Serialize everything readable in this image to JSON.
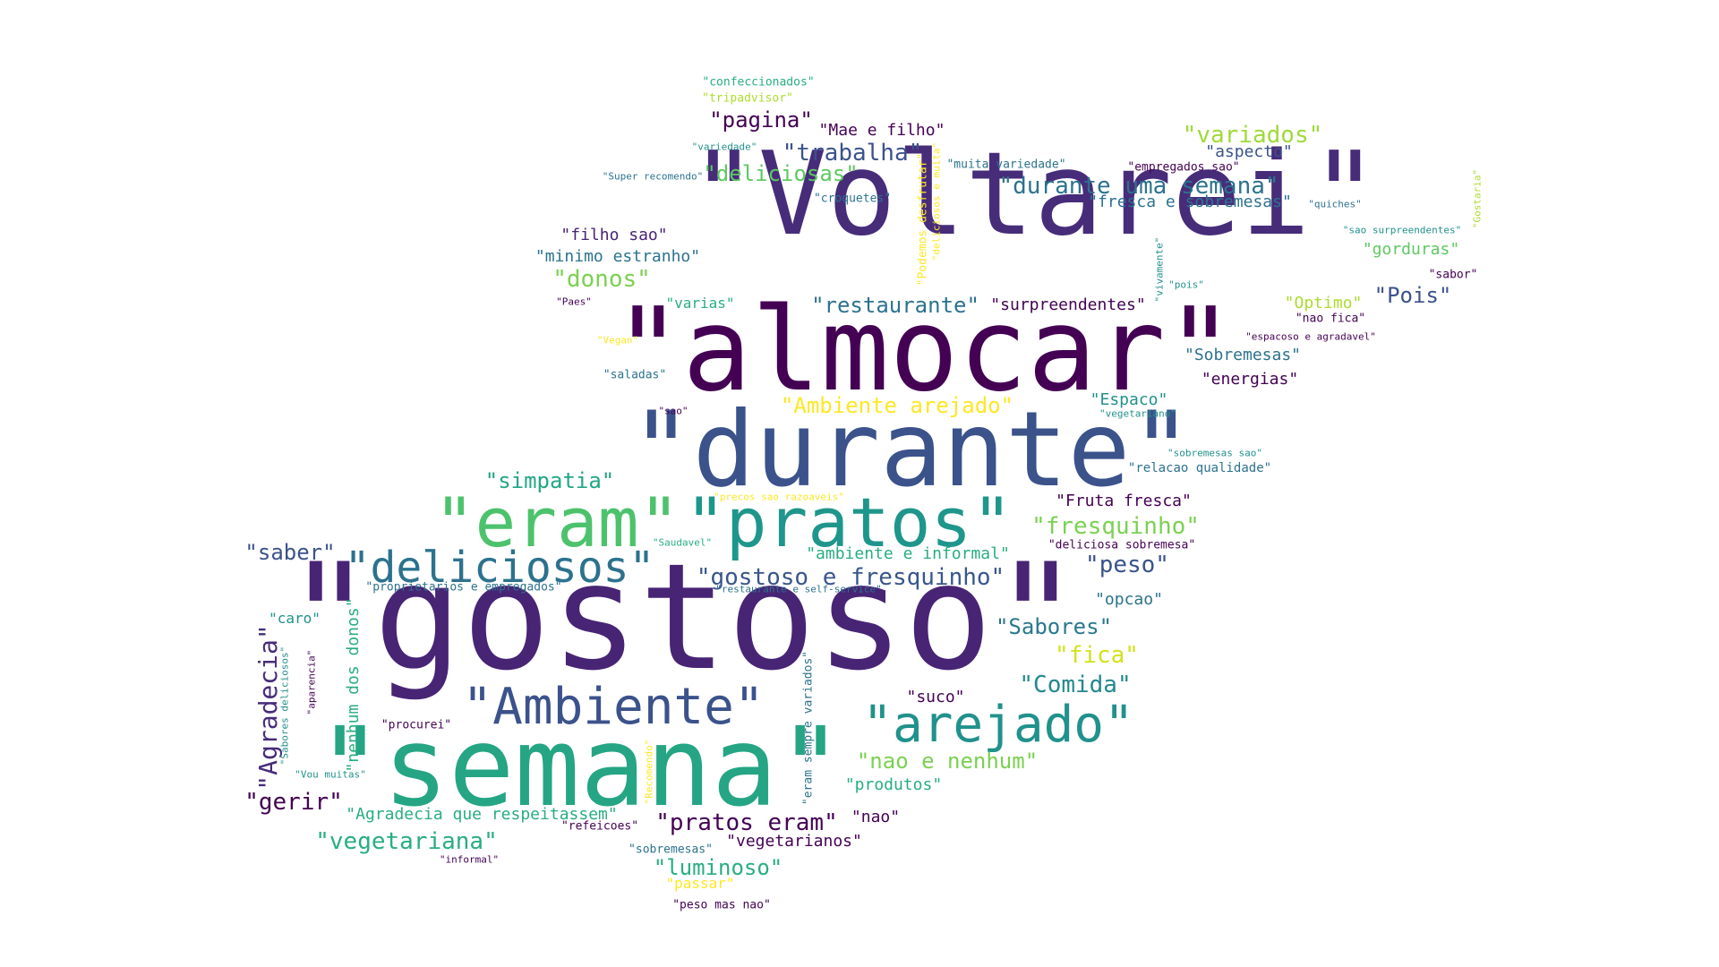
{
  "wordcloud": {
    "palette": {
      "dark_purple": "#440154",
      "indigo": "#472c7a",
      "slate_blue": "#3b528b",
      "steel_blue": "#2c728e",
      "teal": "#21918c",
      "green_teal": "#28ae80",
      "green": "#5ec962",
      "lime": "#addc30",
      "yellow": "#fde725"
    },
    "words": [
      {
        "text": "\"Voltarei\"",
        "color": "#472c7a"
      },
      {
        "text": "\"almocar\"",
        "color": "#440154"
      },
      {
        "text": "\"durante\"",
        "color": "#3b528b"
      },
      {
        "text": "\"gostoso\"",
        "color": "#482475"
      },
      {
        "text": "\"semana\"",
        "color": "#25a584"
      },
      {
        "text": "\"eram\"",
        "color": "#4cc26c"
      },
      {
        "text": "\"pratos\"",
        "color": "#1f968b"
      },
      {
        "text": "\"deliciosos\"",
        "color": "#2c728e"
      },
      {
        "text": "\"Ambiente\"",
        "color": "#3b528b"
      },
      {
        "text": "\"arejado\"",
        "color": "#21918c"
      },
      {
        "text": "\"gostoso e fresquinho\"",
        "color": "#39568c"
      },
      {
        "text": "\"durante uma semana\"",
        "color": "#2c728e"
      },
      {
        "text": "\"fresquinho\"",
        "color": "#7ad151"
      },
      {
        "text": "\"Agradecia\"",
        "color": "#472c7a"
      },
      {
        "text": "\"simpatia\"",
        "color": "#21a685"
      },
      {
        "text": "\"saber\"",
        "color": "#3b528b"
      },
      {
        "text": "\"pagina\"",
        "color": "#440154"
      },
      {
        "text": "\"trabalha\"",
        "color": "#3b528b"
      },
      {
        "text": "\"deliciosas\"",
        "color": "#5ec962"
      },
      {
        "text": "\"variados\"",
        "color": "#a0da39"
      },
      {
        "text": "\"donos\"",
        "color": "#7ad151"
      },
      {
        "text": "\"restaurante\"",
        "color": "#2c728e"
      },
      {
        "text": "\"Pois\"",
        "color": "#3b528b"
      },
      {
        "text": "\"Sabores\"",
        "color": "#2a788e"
      },
      {
        "text": "\"fica\"",
        "color": "#d2e21b"
      },
      {
        "text": "\"Comida\"",
        "color": "#23888e"
      },
      {
        "text": "\"nao e nenhum\"",
        "color": "#7ad151"
      },
      {
        "text": "\"peso\"",
        "color": "#3b528b"
      },
      {
        "text": "\"pratos eram\"",
        "color": "#440154"
      },
      {
        "text": "\"vegetariana\"",
        "color": "#28ae80"
      },
      {
        "text": "\"luminoso\"",
        "color": "#28ae80"
      },
      {
        "text": "\"gerir\"",
        "color": "#440154"
      },
      {
        "text": "\"Ambiente arejado\"",
        "color": "#fde725"
      },
      {
        "text": "\"Mae e filho\"",
        "color": "#440154"
      },
      {
        "text": "\"aspecto\"",
        "color": "#3b528b"
      },
      {
        "text": "\"fresca e sobremesas\"",
        "color": "#2c728e"
      },
      {
        "text": "\"filho sao\"",
        "color": "#482475"
      },
      {
        "text": "\"minimo estranho\"",
        "color": "#2c728e"
      },
      {
        "text": "\"surpreendentes\"",
        "color": "#440154"
      },
      {
        "text": "\"Optimo\"",
        "color": "#addc30"
      },
      {
        "text": "\"gorduras\"",
        "color": "#5ec962"
      },
      {
        "text": "\"Sobremesas\"",
        "color": "#2c728e"
      },
      {
        "text": "\"energias\"",
        "color": "#440154"
      },
      {
        "text": "\"Espaco\"",
        "color": "#21918c"
      },
      {
        "text": "\"relacao qualidade\"",
        "color": "#2c728e"
      },
      {
        "text": "\"Fruta fresca\"",
        "color": "#440154"
      },
      {
        "text": "\"ambiente e informal\"",
        "color": "#28ae80"
      },
      {
        "text": "\"opcao\"",
        "color": "#2c728e"
      },
      {
        "text": "\"suco\"",
        "color": "#440154"
      },
      {
        "text": "\"produtos\"",
        "color": "#28ae80"
      },
      {
        "text": "\"nao\"",
        "color": "#440154"
      },
      {
        "text": "\"vegetarianos\"",
        "color": "#440154"
      },
      {
        "text": "\"Agradecia que respeitassem\"",
        "color": "#28ae80"
      },
      {
        "text": "\"nenhum dos donos\"",
        "color": "#28ae80"
      },
      {
        "text": "\"caro\"",
        "color": "#21918c"
      },
      {
        "text": "\"passar\"",
        "color": "#fde725"
      },
      {
        "text": "\"varias\"",
        "color": "#28ae80"
      },
      {
        "text": "\"confeccionados\"",
        "color": "#28ae80"
      },
      {
        "text": "\"tripadvisor\"",
        "color": "#addc30"
      },
      {
        "text": "\"variedade\"",
        "color": "#21918c"
      },
      {
        "text": "\"Super recomendo\"",
        "color": "#2c728e"
      },
      {
        "text": "\"croquetes\"",
        "color": "#2c728e"
      },
      {
        "text": "\"muita variedade\"",
        "color": "#2c728e"
      },
      {
        "text": "\"empregados sao\"",
        "color": "#440154"
      },
      {
        "text": "\"quiches\"",
        "color": "#2c728e"
      },
      {
        "text": "\"sao surpreendentes\"",
        "color": "#21918c"
      },
      {
        "text": "\"sabor\"",
        "color": "#440154"
      },
      {
        "text": "\"Paes\"",
        "color": "#440154"
      },
      {
        "text": "\"Vegan\"",
        "color": "#fde725"
      },
      {
        "text": "\"pois\"",
        "color": "#21918c"
      },
      {
        "text": "\"nao fica\"",
        "color": "#440154"
      },
      {
        "text": "\"espacoso e agradavel\"",
        "color": "#440154"
      },
      {
        "text": "\"saladas\"",
        "color": "#2c728e"
      },
      {
        "text": "\"sao\"",
        "color": "#440154"
      },
      {
        "text": "\"vegetariano\"",
        "color": "#21918c"
      },
      {
        "text": "\"sobremesas sao\"",
        "color": "#21918c"
      },
      {
        "text": "\"precos sao razoaveis\"",
        "color": "#fde725"
      },
      {
        "text": "\"Saudavel\"",
        "color": "#28ae80"
      },
      {
        "text": "\"deliciosa sobremesa\"",
        "color": "#440154"
      },
      {
        "text": "\"proprietarios e empregados\"",
        "color": "#2c728e"
      },
      {
        "text": "\"restaurante e self-service\"",
        "color": "#2c728e"
      },
      {
        "text": "\"procurei\"",
        "color": "#440154"
      },
      {
        "text": "\"Vou muitas\"",
        "color": "#21918c"
      },
      {
        "text": "\"refeicoes\"",
        "color": "#440154"
      },
      {
        "text": "\"sobremesas\"",
        "color": "#2c728e"
      },
      {
        "text": "\"informal\"",
        "color": "#440154"
      },
      {
        "text": "\"peso mas nao\"",
        "color": "#440154"
      },
      {
        "text": "\"Podemos desfrutar\"",
        "color": "#fde725"
      },
      {
        "text": "\"deliciosos e muita\"",
        "color": "#fde725"
      },
      {
        "text": "\"vivamente\"",
        "color": "#21918c"
      },
      {
        "text": "\"Gostaria\"",
        "color": "#addc30"
      },
      {
        "text": "\"Sabores deliciosos\"",
        "color": "#21918c"
      },
      {
        "text": "\"aparencia\"",
        "color": "#440154"
      },
      {
        "text": "\"Recomendo\"",
        "color": "#fde725"
      },
      {
        "text": "\"eram sempre variados\"",
        "color": "#2c728e"
      }
    ]
  }
}
